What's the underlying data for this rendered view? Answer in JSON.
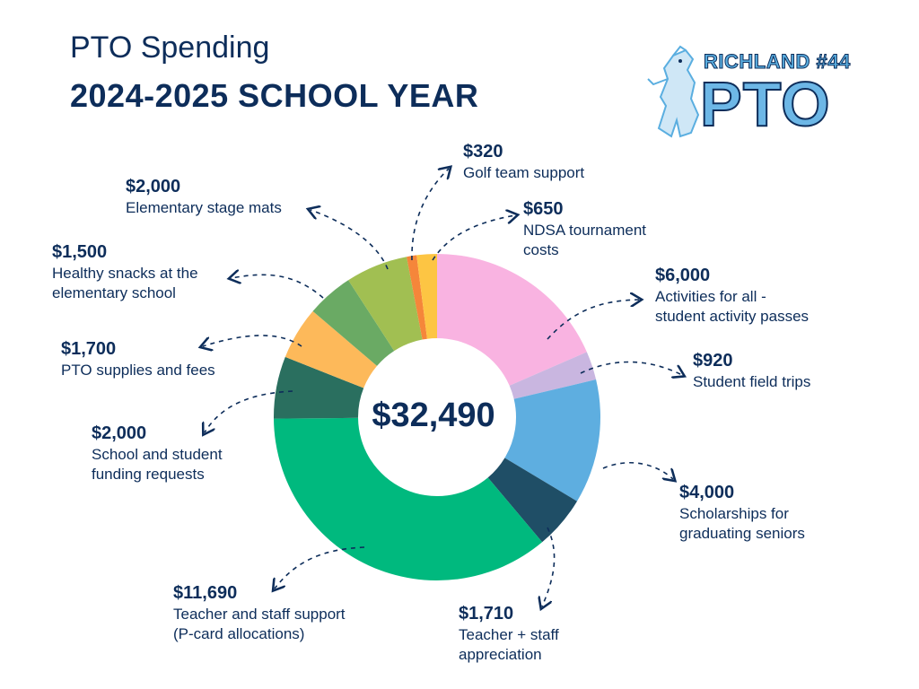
{
  "header": {
    "title": "PTO Spending",
    "subtitle": "2024-2025 SCHOOL YEAR"
  },
  "logo": {
    "top_text": "RICHLAND #44",
    "main_text": "PTO",
    "icon": "mustang-mascot-icon"
  },
  "chart_data": {
    "type": "pie",
    "total_label": "$32,490",
    "slices": [
      {
        "amount_label": "$6,000",
        "value": 6000,
        "desc": "Activities for all -\nstudent activity passes",
        "color": "#f9b3e1"
      },
      {
        "amount_label": "$920",
        "value": 920,
        "desc": "Student field trips",
        "color": "#c9b6e0"
      },
      {
        "amount_label": "$4,000",
        "value": 4000,
        "desc": "Scholarships for\ngraduating seniors",
        "color": "#5eaee0"
      },
      {
        "amount_label": "$1,710",
        "value": 1710,
        "desc": "Teacher + staff\nappreciation",
        "color": "#1f4e66"
      },
      {
        "amount_label": "$11,690",
        "value": 11690,
        "desc": "Teacher and staff support\n(P-card allocations)",
        "color": "#00b97e"
      },
      {
        "amount_label": "$2,000",
        "value": 2000,
        "desc": "School and student\nfunding requests",
        "color": "#2a6f5f"
      },
      {
        "amount_label": "$1,700",
        "value": 1700,
        "desc": "PTO supplies and fees",
        "color": "#fdb95a"
      },
      {
        "amount_label": "$1,500",
        "value": 1500,
        "desc": "Healthy snacks at the\nelementary school",
        "color": "#6aaa64"
      },
      {
        "amount_label": "$2,000",
        "value": 2000,
        "desc": "Elementary stage mats",
        "color": "#a1bf52"
      },
      {
        "amount_label": "$320",
        "value": 320,
        "desc": "Golf team support",
        "color": "#f5863a"
      },
      {
        "amount_label": "$650",
        "value": 650,
        "desc": "NDSA tournament\ncosts",
        "color": "#fdc543"
      }
    ]
  }
}
